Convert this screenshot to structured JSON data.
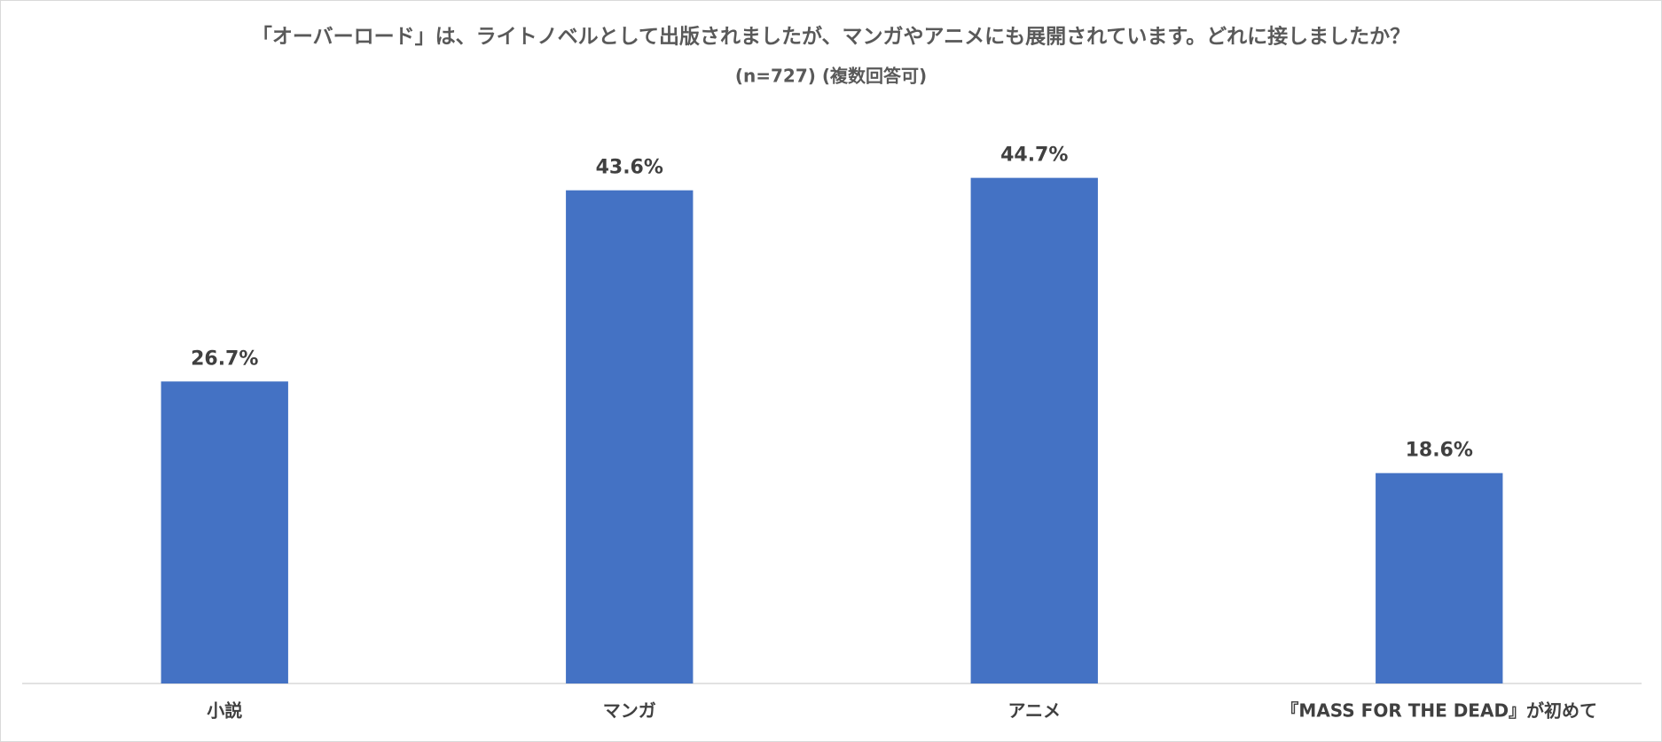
{
  "chart_data": {
    "type": "bar",
    "title": "「オーバーロード」は、ライトノベルとして出版されましたが、マンガやアニメにも展開されています。どれに接しましたか？",
    "subtitle": "(n=727)  (複数回答可)",
    "categories": [
      "小説",
      "マンガ",
      "アニメ",
      "『MASS FOR THE DEAD』が初めて"
    ],
    "values": [
      26.7,
      43.6,
      44.7,
      18.6
    ],
    "value_labels": [
      "26.7%",
      "43.6%",
      "44.7%",
      "18.6%"
    ],
    "color": "#4472c4",
    "ylim": [
      0,
      50
    ],
    "grid": false
  }
}
